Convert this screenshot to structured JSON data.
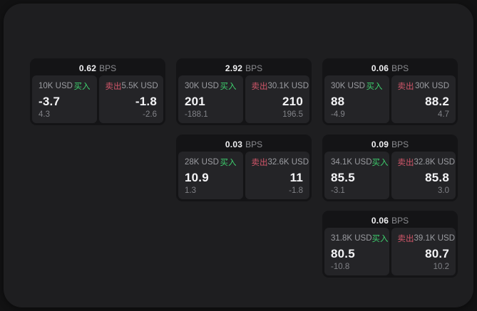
{
  "labels": {
    "bps": "BPS",
    "buy": "买入",
    "sell": "卖出"
  },
  "colors": {
    "buy_green": "#3ecf6e",
    "sell_red": "#d2566a",
    "panel_bg": "#1e1e20",
    "card_bg": "#141416",
    "tile_bg": "#242427"
  },
  "cards": [
    {
      "col": 1,
      "row": 1,
      "bps": "0.62",
      "buy": {
        "size": "10K USD",
        "value": "-3.7",
        "delta": "4.3"
      },
      "sell": {
        "size": "5.5K USD",
        "value": "-1.8",
        "delta": "-2.6"
      }
    },
    {
      "col": 2,
      "row": 1,
      "bps": "2.92",
      "buy": {
        "size": "30K USD",
        "value": "201",
        "delta": "-188.1"
      },
      "sell": {
        "size": "30.1K USD",
        "value": "210",
        "delta": "196.5"
      }
    },
    {
      "col": 3,
      "row": 1,
      "bps": "0.06",
      "buy": {
        "size": "30K USD",
        "value": "88",
        "delta": "-4.9"
      },
      "sell": {
        "size": "30K USD",
        "value": "88.2",
        "delta": "4.7"
      }
    },
    {
      "col": 2,
      "row": 2,
      "bps": "0.03",
      "buy": {
        "size": "28K USD",
        "value": "10.9",
        "delta": "1.3"
      },
      "sell": {
        "size": "32.6K USD",
        "value": "11",
        "delta": "-1.8"
      }
    },
    {
      "col": 3,
      "row": 2,
      "bps": "0.09",
      "buy": {
        "size": "34.1K USD",
        "value": "85.5",
        "delta": "-3.1"
      },
      "sell": {
        "size": "32.8K USD",
        "value": "85.8",
        "delta": "3.0"
      }
    },
    {
      "col": 3,
      "row": 3,
      "bps": "0.06",
      "buy": {
        "size": "31.8K USD",
        "value": "80.5",
        "delta": "-10.8"
      },
      "sell": {
        "size": "39.1K USD",
        "value": "80.7",
        "delta": "10.2"
      }
    }
  ]
}
